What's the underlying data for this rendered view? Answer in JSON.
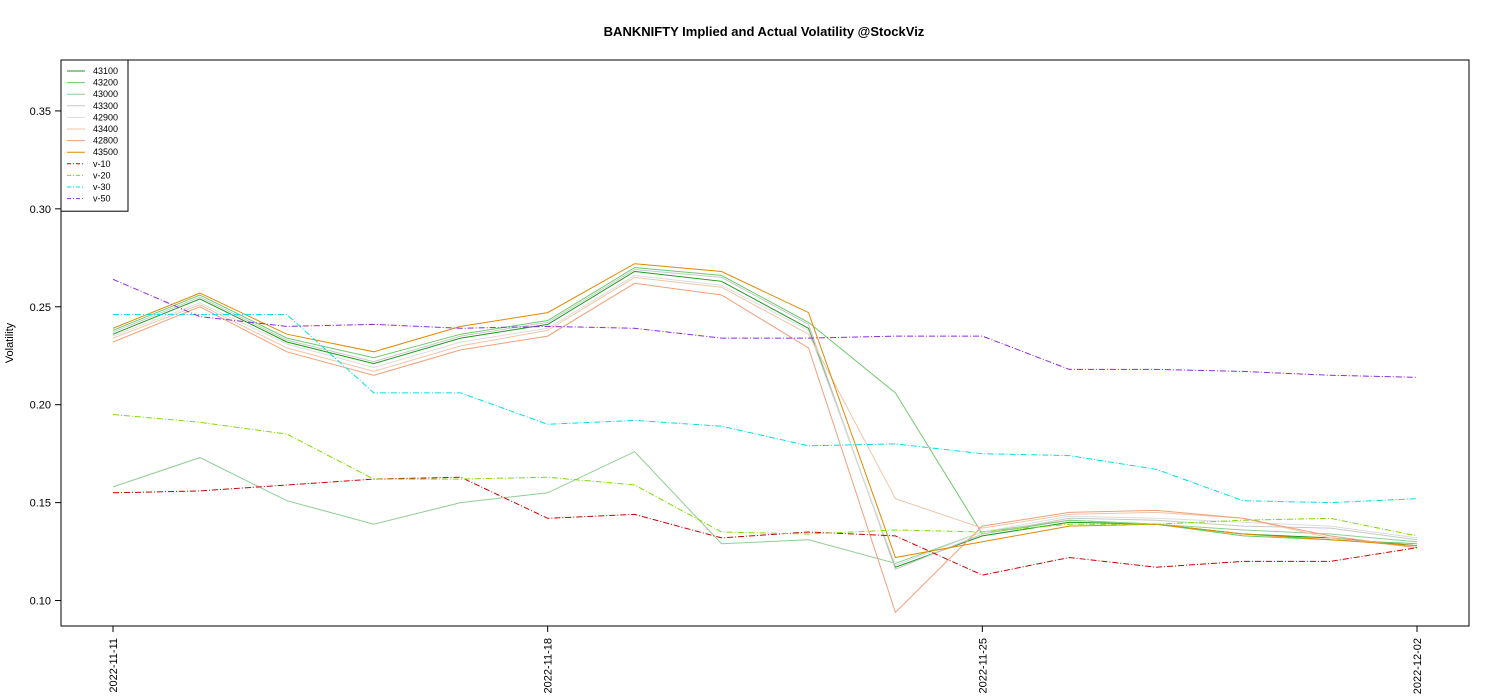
{
  "chart_data": {
    "type": "line",
    "title": "BANKNIFTY Implied and Actual Volatility @StockViz",
    "xlabel": "",
    "ylabel": "Volatility",
    "x": [
      "2022-11-11",
      "2022-11-14",
      "2022-11-15",
      "2022-11-16",
      "2022-11-17",
      "2022-11-18",
      "2022-11-21",
      "2022-11-22",
      "2022-11-23",
      "2022-11-24",
      "2022-11-25",
      "2022-11-28",
      "2022-11-29",
      "2022-11-30",
      "2022-12-01",
      "2022-12-02"
    ],
    "x_tick_labels": [
      "2022-11-11",
      "2022-11-18",
      "2022-11-25",
      "2022-12-02"
    ],
    "y_ticks": [
      "0.10",
      "0.15",
      "0.20",
      "0.25",
      "0.30",
      "0.35"
    ],
    "ylim": [
      0.087,
      0.376
    ],
    "grid": false,
    "legend_position": "top-left",
    "series": [
      {
        "name": "43100",
        "color": "#1a9a1a",
        "dash": "",
        "values": [
          0.236,
          0.254,
          0.232,
          0.221,
          0.234,
          0.241,
          0.268,
          0.263,
          0.239,
          0.117,
          0.133,
          0.14,
          0.139,
          0.134,
          0.132,
          0.128
        ]
      },
      {
        "name": "43200",
        "color": "#6cc96c",
        "dash": "",
        "values": [
          0.238,
          0.256,
          0.234,
          0.224,
          0.236,
          0.243,
          0.27,
          0.266,
          0.242,
          0.206,
          0.134,
          0.141,
          0.139,
          0.133,
          0.131,
          0.129
        ]
      },
      {
        "name": "43000",
        "color": "#8fcf8f",
        "dash": "",
        "values": [
          0.158,
          0.173,
          0.151,
          0.139,
          0.15,
          0.155,
          0.176,
          0.129,
          0.131,
          0.119,
          0.135,
          0.141,
          0.139,
          0.136,
          0.134,
          0.13
        ]
      },
      {
        "name": "43300",
        "color": "#c8c8c8",
        "dash": "",
        "values": [
          0.237,
          0.255,
          0.233,
          0.222,
          0.235,
          0.242,
          0.269,
          0.265,
          0.241,
          0.116,
          0.134,
          0.142,
          0.141,
          0.138,
          0.137,
          0.131
        ]
      },
      {
        "name": "42900",
        "color": "#dcdcdc",
        "dash": "",
        "values": [
          0.235,
          0.252,
          0.231,
          0.219,
          0.232,
          0.239,
          0.266,
          0.261,
          0.238,
          0.118,
          0.135,
          0.143,
          0.142,
          0.14,
          0.138,
          0.132
        ]
      },
      {
        "name": "43400",
        "color": "#efc6a8",
        "dash": "",
        "values": [
          0.234,
          0.251,
          0.229,
          0.217,
          0.23,
          0.238,
          0.265,
          0.26,
          0.236,
          0.152,
          0.137,
          0.144,
          0.145,
          0.142,
          0.132,
          0.127
        ]
      },
      {
        "name": "42800",
        "color": "#f0a07a",
        "dash": "",
        "values": [
          0.232,
          0.25,
          0.227,
          0.215,
          0.228,
          0.235,
          0.262,
          0.256,
          0.229,
          0.094,
          0.138,
          0.145,
          0.146,
          0.142,
          0.133,
          0.127
        ]
      },
      {
        "name": "43500",
        "color": "#e08a00",
        "dash": "",
        "values": [
          0.239,
          0.257,
          0.236,
          0.227,
          0.24,
          0.247,
          0.272,
          0.268,
          0.247,
          0.122,
          0.13,
          0.138,
          0.139,
          0.134,
          0.131,
          0.128
        ]
      },
      {
        "name": "v-10",
        "color": "#cc0000",
        "dash": "6,2,1,2",
        "values": [
          0.155,
          0.156,
          0.159,
          0.162,
          0.163,
          0.142,
          0.144,
          0.132,
          0.135,
          0.133,
          0.113,
          0.122,
          0.117,
          0.12,
          0.12,
          0.127
        ]
      },
      {
        "name": "v-20",
        "color": "#7fdc00",
        "dash": "6,2,1,2",
        "values": [
          0.195,
          0.191,
          0.185,
          0.162,
          0.162,
          0.163,
          0.159,
          0.135,
          0.134,
          0.136,
          0.135,
          0.139,
          0.139,
          0.141,
          0.142,
          0.133
        ]
      },
      {
        "name": "v-30",
        "color": "#00e0e0",
        "dash": "6,2,1,2",
        "values": [
          0.246,
          0.246,
          0.246,
          0.206,
          0.206,
          0.19,
          0.192,
          0.189,
          0.179,
          0.18,
          0.175,
          0.174,
          0.167,
          0.151,
          0.15,
          0.152
        ]
      },
      {
        "name": "v-50",
        "color": "#8a2be2",
        "dash": "6,2,1,2",
        "values": [
          0.264,
          0.245,
          0.24,
          0.241,
          0.239,
          0.24,
          0.239,
          0.234,
          0.234,
          0.235,
          0.235,
          0.218,
          0.218,
          0.217,
          0.215,
          0.214
        ]
      }
    ]
  }
}
